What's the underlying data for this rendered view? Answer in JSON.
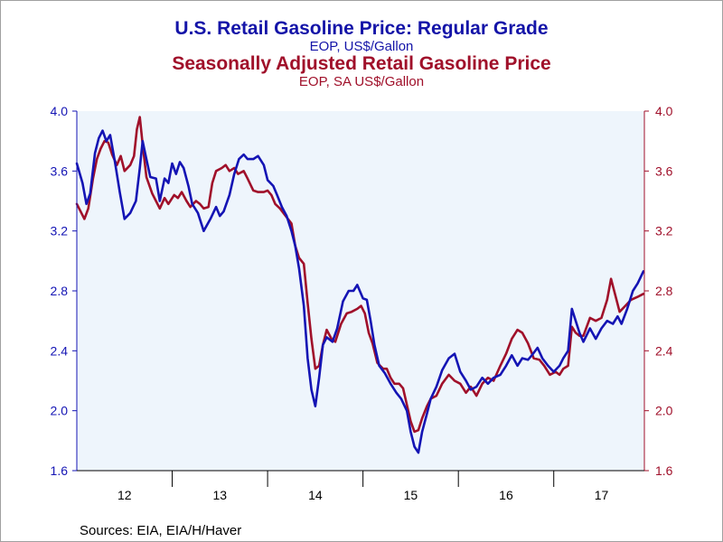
{
  "titles": {
    "title1": "U.S. Retail Gasoline Price: Regular Grade",
    "subtitle1": "EOP, US$/Gallon",
    "title2": "Seasonally Adjusted Retail Gasoline Price",
    "subtitle2": "EOP, SA US$/Gallon"
  },
  "source": "Sources:  EIA, EIA/H/Haver",
  "colors": {
    "series1": "#1414b4",
    "series2": "#a0102a",
    "plot_bg": "#eef5fc"
  },
  "chart_data": {
    "type": "line",
    "x_unit": "year (decimal)",
    "xlim": [
      2012.0,
      2017.95
    ],
    "ylim": [
      1.6,
      4.0
    ],
    "left_ticks": [
      "4.0",
      "3.6",
      "3.2",
      "2.8",
      "2.4",
      "2.0",
      "1.6"
    ],
    "right_ticks": [
      "4.0",
      "3.6",
      "3.2",
      "2.8",
      "2.4",
      "2.0",
      "1.6"
    ],
    "x_tick_labels": [
      "12",
      "13",
      "14",
      "15",
      "16",
      "17"
    ],
    "series": [
      {
        "points": [
          [
            2012.0,
            3.65
          ],
          [
            2012.06,
            3.52
          ],
          [
            2012.1,
            3.38
          ],
          [
            2012.14,
            3.45
          ],
          [
            2012.19,
            3.72
          ],
          [
            2012.23,
            3.82
          ],
          [
            2012.27,
            3.87
          ],
          [
            2012.31,
            3.8
          ],
          [
            2012.35,
            3.84
          ],
          [
            2012.4,
            3.66
          ],
          [
            2012.45,
            3.46
          ],
          [
            2012.5,
            3.28
          ],
          [
            2012.56,
            3.32
          ],
          [
            2012.62,
            3.4
          ],
          [
            2012.66,
            3.62
          ],
          [
            2012.69,
            3.8
          ],
          [
            2012.73,
            3.68
          ],
          [
            2012.77,
            3.56
          ],
          [
            2012.83,
            3.55
          ],
          [
            2012.87,
            3.4
          ],
          [
            2012.92,
            3.55
          ],
          [
            2012.96,
            3.52
          ],
          [
            2013.0,
            3.65
          ],
          [
            2013.04,
            3.58
          ],
          [
            2013.08,
            3.66
          ],
          [
            2013.12,
            3.62
          ],
          [
            2013.17,
            3.5
          ],
          [
            2013.21,
            3.38
          ],
          [
            2013.27,
            3.32
          ],
          [
            2013.33,
            3.2
          ],
          [
            2013.4,
            3.28
          ],
          [
            2013.46,
            3.36
          ],
          [
            2013.5,
            3.3
          ],
          [
            2013.54,
            3.33
          ],
          [
            2013.6,
            3.44
          ],
          [
            2013.65,
            3.58
          ],
          [
            2013.7,
            3.68
          ],
          [
            2013.75,
            3.71
          ],
          [
            2013.79,
            3.68
          ],
          [
            2013.85,
            3.68
          ],
          [
            2013.9,
            3.7
          ],
          [
            2013.96,
            3.64
          ],
          [
            2014.0,
            3.54
          ],
          [
            2014.06,
            3.5
          ],
          [
            2014.1,
            3.44
          ],
          [
            2014.15,
            3.36
          ],
          [
            2014.2,
            3.3
          ],
          [
            2014.25,
            3.2
          ],
          [
            2014.29,
            3.1
          ],
          [
            2014.33,
            2.95
          ],
          [
            2014.38,
            2.7
          ],
          [
            2014.42,
            2.35
          ],
          [
            2014.46,
            2.14
          ],
          [
            2014.5,
            2.03
          ],
          [
            2014.54,
            2.22
          ],
          [
            2014.58,
            2.44
          ],
          [
            2014.62,
            2.49
          ],
          [
            2014.68,
            2.46
          ],
          [
            2014.73,
            2.55
          ],
          [
            2014.79,
            2.73
          ],
          [
            2014.85,
            2.8
          ],
          [
            2014.9,
            2.8
          ],
          [
            2014.94,
            2.84
          ],
          [
            2015.0,
            2.75
          ],
          [
            2015.04,
            2.74
          ],
          [
            2015.08,
            2.6
          ],
          [
            2015.12,
            2.44
          ],
          [
            2015.17,
            2.3
          ],
          [
            2015.23,
            2.25
          ],
          [
            2015.29,
            2.18
          ],
          [
            2015.35,
            2.12
          ],
          [
            2015.4,
            2.08
          ],
          [
            2015.46,
            2.0
          ],
          [
            2015.5,
            1.86
          ],
          [
            2015.54,
            1.76
          ],
          [
            2015.58,
            1.72
          ],
          [
            2015.62,
            1.86
          ],
          [
            2015.67,
            1.98
          ],
          [
            2015.71,
            2.08
          ],
          [
            2015.77,
            2.16
          ],
          [
            2015.83,
            2.27
          ],
          [
            2015.9,
            2.35
          ],
          [
            2015.96,
            2.38
          ],
          [
            2016.02,
            2.26
          ],
          [
            2016.08,
            2.2
          ],
          [
            2016.13,
            2.14
          ],
          [
            2016.19,
            2.16
          ],
          [
            2016.25,
            2.22
          ],
          [
            2016.31,
            2.18
          ],
          [
            2016.37,
            2.22
          ],
          [
            2016.44,
            2.24
          ],
          [
            2016.5,
            2.3
          ],
          [
            2016.56,
            2.37
          ],
          [
            2016.62,
            2.3
          ],
          [
            2016.67,
            2.35
          ],
          [
            2016.73,
            2.34
          ],
          [
            2016.77,
            2.37
          ],
          [
            2016.83,
            2.42
          ],
          [
            2016.88,
            2.35
          ],
          [
            2016.94,
            2.3
          ],
          [
            2017.0,
            2.26
          ],
          [
            2017.06,
            2.3
          ],
          [
            2017.1,
            2.35
          ],
          [
            2017.15,
            2.4
          ],
          [
            2017.19,
            2.68
          ],
          [
            2017.23,
            2.6
          ],
          [
            2017.27,
            2.52
          ],
          [
            2017.31,
            2.46
          ],
          [
            2017.38,
            2.55
          ],
          [
            2017.44,
            2.48
          ],
          [
            2017.5,
            2.55
          ],
          [
            2017.56,
            2.6
          ],
          [
            2017.62,
            2.58
          ],
          [
            2017.67,
            2.63
          ],
          [
            2017.71,
            2.58
          ],
          [
            2017.77,
            2.68
          ],
          [
            2017.83,
            2.8
          ],
          [
            2017.88,
            2.85
          ],
          [
            2017.94,
            2.93
          ]
        ]
      },
      {
        "points": [
          [
            2012.0,
            3.38
          ],
          [
            2012.04,
            3.33
          ],
          [
            2012.08,
            3.28
          ],
          [
            2012.12,
            3.35
          ],
          [
            2012.17,
            3.55
          ],
          [
            2012.21,
            3.68
          ],
          [
            2012.25,
            3.75
          ],
          [
            2012.29,
            3.8
          ],
          [
            2012.33,
            3.79
          ],
          [
            2012.37,
            3.71
          ],
          [
            2012.42,
            3.64
          ],
          [
            2012.46,
            3.7
          ],
          [
            2012.5,
            3.6
          ],
          [
            2012.56,
            3.64
          ],
          [
            2012.6,
            3.7
          ],
          [
            2012.63,
            3.88
          ],
          [
            2012.66,
            3.96
          ],
          [
            2012.69,
            3.78
          ],
          [
            2012.73,
            3.56
          ],
          [
            2012.79,
            3.45
          ],
          [
            2012.83,
            3.4
          ],
          [
            2012.87,
            3.35
          ],
          [
            2012.92,
            3.42
          ],
          [
            2012.96,
            3.38
          ],
          [
            2013.02,
            3.44
          ],
          [
            2013.06,
            3.42
          ],
          [
            2013.1,
            3.46
          ],
          [
            2013.15,
            3.4
          ],
          [
            2013.19,
            3.36
          ],
          [
            2013.25,
            3.4
          ],
          [
            2013.29,
            3.38
          ],
          [
            2013.33,
            3.35
          ],
          [
            2013.38,
            3.36
          ],
          [
            2013.42,
            3.52
          ],
          [
            2013.46,
            3.6
          ],
          [
            2013.52,
            3.62
          ],
          [
            2013.56,
            3.64
          ],
          [
            2013.6,
            3.6
          ],
          [
            2013.65,
            3.62
          ],
          [
            2013.69,
            3.58
          ],
          [
            2013.75,
            3.6
          ],
          [
            2013.79,
            3.55
          ],
          [
            2013.85,
            3.47
          ],
          [
            2013.9,
            3.46
          ],
          [
            2013.96,
            3.46
          ],
          [
            2014.0,
            3.47
          ],
          [
            2014.04,
            3.44
          ],
          [
            2014.08,
            3.38
          ],
          [
            2014.13,
            3.35
          ],
          [
            2014.19,
            3.3
          ],
          [
            2014.25,
            3.25
          ],
          [
            2014.29,
            3.1
          ],
          [
            2014.33,
            3.02
          ],
          [
            2014.38,
            2.98
          ],
          [
            2014.42,
            2.72
          ],
          [
            2014.46,
            2.48
          ],
          [
            2014.5,
            2.28
          ],
          [
            2014.54,
            2.3
          ],
          [
            2014.58,
            2.44
          ],
          [
            2014.62,
            2.54
          ],
          [
            2014.67,
            2.48
          ],
          [
            2014.71,
            2.46
          ],
          [
            2014.77,
            2.58
          ],
          [
            2014.83,
            2.65
          ],
          [
            2014.88,
            2.66
          ],
          [
            2014.94,
            2.68
          ],
          [
            2014.98,
            2.7
          ],
          [
            2015.02,
            2.65
          ],
          [
            2015.06,
            2.52
          ],
          [
            2015.1,
            2.45
          ],
          [
            2015.15,
            2.32
          ],
          [
            2015.21,
            2.28
          ],
          [
            2015.25,
            2.28
          ],
          [
            2015.29,
            2.22
          ],
          [
            2015.33,
            2.18
          ],
          [
            2015.38,
            2.18
          ],
          [
            2015.42,
            2.15
          ],
          [
            2015.46,
            2.04
          ],
          [
            2015.5,
            1.93
          ],
          [
            2015.54,
            1.86
          ],
          [
            2015.58,
            1.87
          ],
          [
            2015.62,
            1.95
          ],
          [
            2015.67,
            2.03
          ],
          [
            2015.71,
            2.08
          ],
          [
            2015.77,
            2.1
          ],
          [
            2015.83,
            2.18
          ],
          [
            2015.9,
            2.24
          ],
          [
            2015.96,
            2.2
          ],
          [
            2016.02,
            2.18
          ],
          [
            2016.08,
            2.12
          ],
          [
            2016.13,
            2.16
          ],
          [
            2016.19,
            2.1
          ],
          [
            2016.25,
            2.18
          ],
          [
            2016.31,
            2.22
          ],
          [
            2016.37,
            2.2
          ],
          [
            2016.44,
            2.3
          ],
          [
            2016.5,
            2.38
          ],
          [
            2016.56,
            2.48
          ],
          [
            2016.62,
            2.54
          ],
          [
            2016.67,
            2.52
          ],
          [
            2016.73,
            2.45
          ],
          [
            2016.79,
            2.35
          ],
          [
            2016.85,
            2.34
          ],
          [
            2016.9,
            2.3
          ],
          [
            2016.96,
            2.24
          ],
          [
            2017.02,
            2.26
          ],
          [
            2017.06,
            2.24
          ],
          [
            2017.1,
            2.28
          ],
          [
            2017.15,
            2.3
          ],
          [
            2017.19,
            2.56
          ],
          [
            2017.23,
            2.52
          ],
          [
            2017.27,
            2.5
          ],
          [
            2017.31,
            2.5
          ],
          [
            2017.38,
            2.62
          ],
          [
            2017.44,
            2.6
          ],
          [
            2017.5,
            2.62
          ],
          [
            2017.56,
            2.74
          ],
          [
            2017.6,
            2.88
          ],
          [
            2017.65,
            2.76
          ],
          [
            2017.69,
            2.66
          ],
          [
            2017.75,
            2.7
          ],
          [
            2017.81,
            2.74
          ],
          [
            2017.88,
            2.76
          ],
          [
            2017.94,
            2.78
          ]
        ]
      }
    ]
  }
}
